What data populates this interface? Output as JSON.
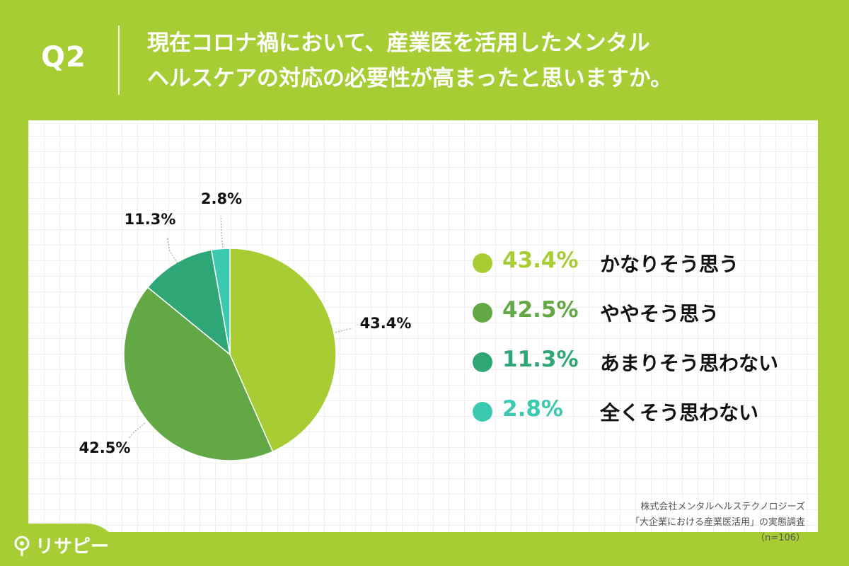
{
  "header": {
    "question_number": "Q2",
    "title_line1": "現在コロナ禍において、産業医を活用したメンタル",
    "title_line2": "ヘルスケアの対応の必要性が高まったと思いますか。"
  },
  "chart_data": {
    "type": "pie",
    "categories": [
      "かなりそう思う",
      "ややそう思う",
      "あまりそう思わない",
      "全くそう思わない"
    ],
    "values": [
      43.4,
      42.5,
      11.3,
      2.8
    ],
    "labels": [
      "43.4%",
      "42.5%",
      "11.3%",
      "2.8%"
    ],
    "colors": [
      "#a8cd34",
      "#62a845",
      "#2fa676",
      "#3bc9b0"
    ],
    "legend_placement": "right"
  },
  "legend_text_colors": [
    "#a8cd34",
    "#62a845",
    "#2fa676",
    "#3bc9b0"
  ],
  "source": {
    "line1": "株式会社メンタルヘルステクノロジーズ",
    "line2": "「大企業における産業医活用」の実態調査",
    "line3": "（n=106）"
  },
  "logo": {
    "text": "リサピー",
    "icon": "pin-icon"
  }
}
